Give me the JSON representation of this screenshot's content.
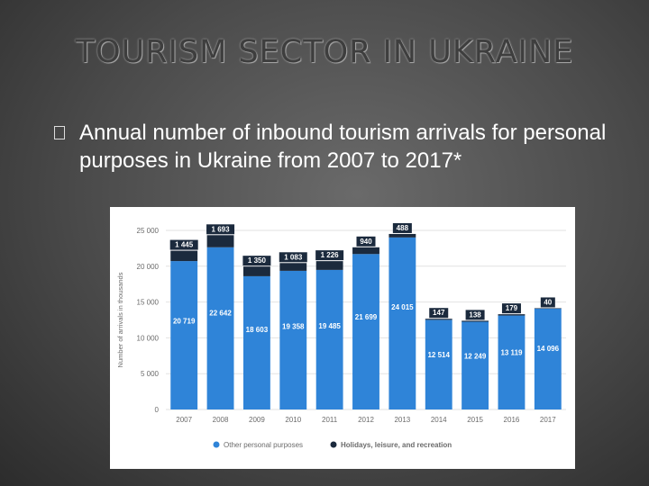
{
  "slide": {
    "title": "TOURISM SECTOR IN UKRAINE",
    "bullet_text": "Annual number of inbound tourism arrivals for personal purposes in Ukraine from 2007 to 2017*"
  },
  "colors": {
    "other_personal": "#2f84d8",
    "holidays": "#1b2a3d",
    "grid": "#e2e2e2",
    "axis_text": "#6b6b6b",
    "label_text": "#ffffff"
  },
  "chart_data": {
    "type": "bar",
    "stacked": true,
    "categories": [
      "2007",
      "2008",
      "2009",
      "2010",
      "2011",
      "2012",
      "2013",
      "2014",
      "2015",
      "2016",
      "2017"
    ],
    "series": [
      {
        "name": "Other personal purposes",
        "values": [
          20719,
          22642,
          18603,
          19358,
          19485,
          21699,
          24015,
          12514,
          12249,
          13119,
          14096
        ],
        "labels": [
          "20 719",
          "22 642",
          "18 603",
          "19 358",
          "19 485",
          "21 699",
          "24 015",
          "12 514",
          "12 249",
          "13 119",
          "14 096"
        ]
      },
      {
        "name": "Holidays, leisure, and recreation",
        "values": [
          1445,
          1693,
          1350,
          1083,
          1226,
          940,
          488,
          147,
          138,
          179,
          40
        ],
        "labels": [
          "1 445",
          "1 693",
          "1 350",
          "1 083",
          "1 226",
          "940",
          "488",
          "147",
          "138",
          "179",
          "40"
        ]
      }
    ],
    "ylabel": "Number of arrivals in thousands",
    "ylim": [
      0,
      25000
    ],
    "yticks": [
      0,
      5000,
      10000,
      15000,
      20000,
      25000
    ],
    "ytick_labels": [
      "0",
      "5 000",
      "10 000",
      "15 000",
      "20 000",
      "25 000"
    ],
    "grid": true,
    "legend": "bottom"
  }
}
